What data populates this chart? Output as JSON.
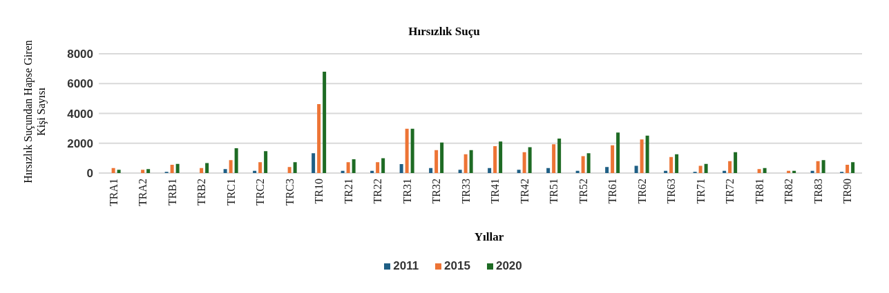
{
  "chart_data": {
    "type": "bar",
    "title": "Hırsızlık Suçu",
    "xlabel": "Yıllar",
    "ylabel": "Hırsızlık Suçundan Hapse Giren Kişi Sayısı",
    "categories": [
      "TRA1",
      "TRA2",
      "TRB1",
      "TRB2",
      "TRC1",
      "TRC2",
      "TRC3",
      "TR10",
      "TR21",
      "TR22",
      "TR31",
      "TR32",
      "TR33",
      "TR41",
      "TR42",
      "TR51",
      "TR52",
      "TR61",
      "TR62",
      "TR63",
      "TR71",
      "TR72",
      "TR81",
      "TR82",
      "TR83",
      "TR90"
    ],
    "series": [
      {
        "name": "2011",
        "color": "#1f5f85",
        "values": [
          0,
          0,
          80,
          0,
          270,
          150,
          0,
          1330,
          150,
          150,
          600,
          340,
          220,
          340,
          220,
          340,
          150,
          400,
          480,
          150,
          80,
          150,
          0,
          0,
          150,
          80
        ]
      },
      {
        "name": "2015",
        "color": "#ed7435",
        "values": [
          340,
          220,
          550,
          340,
          870,
          730,
          410,
          4630,
          730,
          730,
          2970,
          1540,
          1260,
          1800,
          1400,
          1930,
          1130,
          1860,
          2260,
          1080,
          480,
          800,
          270,
          150,
          800,
          550
        ]
      },
      {
        "name": "2020",
        "color": "#1e6b24",
        "values": [
          220,
          270,
          610,
          670,
          1660,
          1470,
          730,
          6800,
          920,
          990,
          2970,
          2050,
          1540,
          2120,
          1730,
          2310,
          1330,
          2720,
          2510,
          1260,
          610,
          1400,
          340,
          150,
          870,
          730
        ]
      }
    ],
    "ylim": [
      0,
      8000
    ],
    "yticks": [
      0,
      2000,
      4000,
      6000,
      8000
    ],
    "grid": "y",
    "legend": "bottom"
  }
}
